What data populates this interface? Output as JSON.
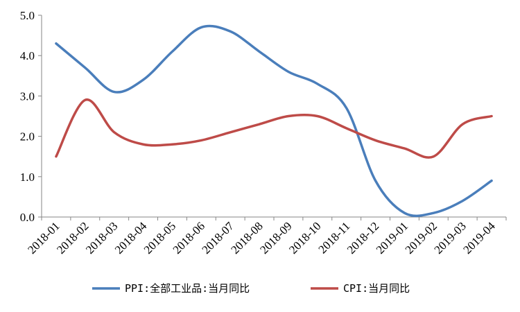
{
  "chart_data": {
    "type": "line",
    "categories": [
      "2018-01",
      "2018-02",
      "2018-03",
      "2018-04",
      "2018-05",
      "2018-06",
      "2018-07",
      "2018-08",
      "2018-09",
      "2018-10",
      "2018-11",
      "2018-12",
      "2019-01",
      "2019-02",
      "2019-03",
      "2019-04"
    ],
    "ylim": [
      0,
      5
    ],
    "yticks": [
      "0.0",
      "1.0",
      "2.0",
      "3.0",
      "4.0",
      "5.0"
    ],
    "grid": false,
    "legend_position": "bottom",
    "series": [
      {
        "name": "PPI:全部工业品:当月同比",
        "color": "#4a7ebb",
        "values": [
          4.3,
          3.7,
          3.1,
          3.4,
          4.1,
          4.7,
          4.6,
          4.1,
          3.6,
          3.3,
          2.7,
          0.9,
          0.1,
          0.1,
          0.4,
          0.9
        ]
      },
      {
        "name": "CPI:当月同比",
        "color": "#be4b48",
        "values": [
          1.5,
          2.9,
          2.1,
          1.8,
          1.8,
          1.9,
          2.1,
          2.3,
          2.5,
          2.5,
          2.2,
          1.9,
          1.7,
          1.5,
          2.3,
          2.5
        ]
      }
    ]
  }
}
